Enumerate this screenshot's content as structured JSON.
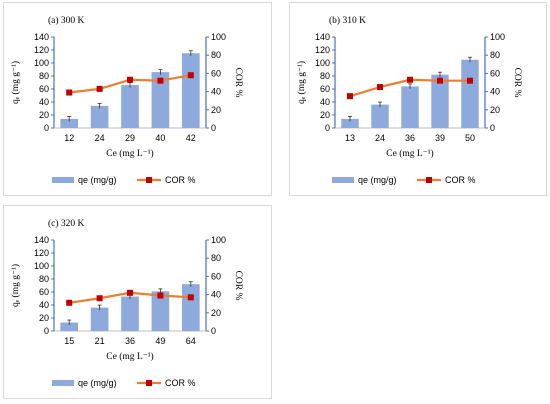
{
  "chart_data": [
    {
      "type": "bar",
      "panel_label": "(a) 300 K",
      "xlabel": "Ce (mg L⁻¹)",
      "ylabel_left": "qₑ (mg g⁻¹)",
      "ylabel_right": "COR %",
      "ylim_left": [
        0,
        140
      ],
      "ylim_right": [
        0,
        100
      ],
      "left_ticks": [
        "0",
        "20",
        "40",
        "60",
        "80",
        "100",
        "120",
        "140"
      ],
      "right_ticks": [
        "0",
        "20",
        "40",
        "60",
        "80",
        "100"
      ],
      "categories": [
        "12",
        "24",
        "29",
        "40",
        "42"
      ],
      "series": [
        {
          "name": "qe (mg/g)",
          "type": "bar",
          "axis": "left",
          "color": "#8ea9db",
          "values": [
            14,
            34,
            66,
            86,
            115
          ]
        },
        {
          "name": "COR %",
          "type": "line",
          "axis": "right",
          "color": "#ed7d31",
          "marker_color": "#c00000",
          "values": [
            39,
            43,
            53,
            52,
            58
          ]
        }
      ],
      "legend": "bottom",
      "grid": false
    },
    {
      "type": "bar",
      "panel_label": "(b) 310 K",
      "xlabel": "Ce (mg L⁻¹)",
      "ylabel_left": "qₑ (mg g⁻¹)",
      "ylabel_right": "COR %",
      "ylim_left": [
        0,
        140
      ],
      "ylim_right": [
        0,
        100
      ],
      "left_ticks": [
        "0",
        "20",
        "40",
        "60",
        "80",
        "100",
        "120",
        "140"
      ],
      "right_ticks": [
        "0",
        "20",
        "40",
        "60",
        "80",
        "100"
      ],
      "categories": [
        "13",
        "24",
        "36",
        "39",
        "50"
      ],
      "series": [
        {
          "name": "qe (mg/g)",
          "type": "bar",
          "axis": "left",
          "color": "#8ea9db",
          "values": [
            14,
            36,
            64,
            82,
            105
          ]
        },
        {
          "name": "COR %",
          "type": "line",
          "axis": "right",
          "color": "#ed7d31",
          "marker_color": "#c00000",
          "values": [
            35,
            45,
            53,
            52,
            52
          ]
        }
      ],
      "legend": "bottom",
      "grid": false
    },
    {
      "type": "bar",
      "panel_label": "(c) 320 K",
      "xlabel": "Ce (mg L⁻¹)",
      "ylabel_left": "qₑ (mg g⁻¹)",
      "ylabel_right": "COR %",
      "ylim_left": [
        0,
        140
      ],
      "ylim_right": [
        0,
        100
      ],
      "left_ticks": [
        "0",
        "20",
        "40",
        "60",
        "80",
        "100",
        "120",
        "140"
      ],
      "right_ticks": [
        "0",
        "20",
        "40",
        "60",
        "80",
        "100"
      ],
      "categories": [
        "15",
        "21",
        "36",
        "49",
        "64"
      ],
      "series": [
        {
          "name": "qe (mg/g)",
          "type": "bar",
          "axis": "left",
          "color": "#8ea9db",
          "values": [
            13,
            36,
            53,
            61,
            72
          ]
        },
        {
          "name": "COR %",
          "type": "line",
          "axis": "right",
          "color": "#ed7d31",
          "marker_color": "#c00000",
          "values": [
            31,
            36,
            42,
            39,
            37
          ]
        }
      ],
      "legend": "bottom",
      "grid": false
    }
  ]
}
